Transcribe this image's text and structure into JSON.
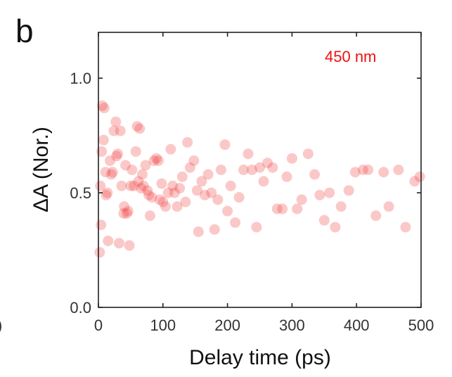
{
  "panel_label": "b",
  "stray_edge_label": ")",
  "colors": {
    "points": "#f03b3b",
    "annotation": "#ee1111",
    "axis": "#222222"
  },
  "chart_data": {
    "type": "scatter",
    "xlabel": "Delay time (ps)",
    "ylabel": "ΔA (Nor.)",
    "xlim": [
      0,
      500
    ],
    "ylim": [
      0,
      1.2
    ],
    "x_ticks": [
      0,
      100,
      200,
      300,
      400,
      500
    ],
    "x_tick_labels": [
      "0",
      "100",
      "200",
      "300",
      "400",
      "500"
    ],
    "y_ticks": [
      0.0,
      0.5,
      1.0
    ],
    "y_tick_labels": [
      "0.0",
      "0.5",
      "1.0"
    ],
    "grid": false,
    "annotation": "450 nm",
    "series": [
      {
        "points": [
          [
            2,
            0.24
          ],
          [
            3,
            0.53
          ],
          [
            4,
            0.36
          ],
          [
            5,
            0.68
          ],
          [
            6,
            0.88
          ],
          [
            8,
            0.73
          ],
          [
            9,
            0.87
          ],
          [
            11,
            0.59
          ],
          [
            12,
            0.49
          ],
          [
            14,
            0.5
          ],
          [
            15,
            0.29
          ],
          [
            18,
            0.64
          ],
          [
            20,
            0.58
          ],
          [
            22,
            0.59
          ],
          [
            24,
            0.77
          ],
          [
            27,
            0.81
          ],
          [
            28,
            0.66
          ],
          [
            30,
            0.67
          ],
          [
            32,
            0.28
          ],
          [
            34,
            0.77
          ],
          [
            36,
            0.53
          ],
          [
            39,
            0.41
          ],
          [
            40,
            0.44
          ],
          [
            42,
            0.62
          ],
          [
            44,
            0.41
          ],
          [
            46,
            0.42
          ],
          [
            48,
            0.27
          ],
          [
            50,
            0.53
          ],
          [
            52,
            0.6
          ],
          [
            55,
            0.53
          ],
          [
            58,
            0.68
          ],
          [
            60,
            0.79
          ],
          [
            62,
            0.55
          ],
          [
            64,
            0.78
          ],
          [
            66,
            0.52
          ],
          [
            68,
            0.58
          ],
          [
            70,
            0.53
          ],
          [
            73,
            0.62
          ],
          [
            76,
            0.51
          ],
          [
            78,
            0.49
          ],
          [
            80,
            0.4
          ],
          [
            83,
            0.48
          ],
          [
            86,
            0.64
          ],
          [
            90,
            0.65
          ],
          [
            93,
            0.64
          ],
          [
            95,
            0.47
          ],
          [
            98,
            0.54
          ],
          [
            100,
            0.46
          ],
          [
            104,
            0.44
          ],
          [
            108,
            0.5
          ],
          [
            112,
            0.69
          ],
          [
            115,
            0.53
          ],
          [
            118,
            0.5
          ],
          [
            122,
            0.44
          ],
          [
            126,
            0.52
          ],
          [
            130,
            0.57
          ],
          [
            135,
            0.46
          ],
          [
            138,
            0.72
          ],
          [
            142,
            0.61
          ],
          [
            148,
            0.64
          ],
          [
            153,
            0.51
          ],
          [
            155,
            0.33
          ],
          [
            160,
            0.55
          ],
          [
            165,
            0.49
          ],
          [
            170,
            0.58
          ],
          [
            175,
            0.5
          ],
          [
            180,
            0.34
          ],
          [
            185,
            0.47
          ],
          [
            190,
            0.6
          ],
          [
            196,
            0.71
          ],
          [
            200,
            0.42
          ],
          [
            205,
            0.53
          ],
          [
            212,
            0.37
          ],
          [
            218,
            0.48
          ],
          [
            225,
            0.6
          ],
          [
            232,
            0.67
          ],
          [
            238,
            0.6
          ],
          [
            245,
            0.35
          ],
          [
            250,
            0.61
          ],
          [
            256,
            0.55
          ],
          [
            262,
            0.63
          ],
          [
            270,
            0.61
          ],
          [
            277,
            0.43
          ],
          [
            285,
            0.43
          ],
          [
            292,
            0.57
          ],
          [
            300,
            0.65
          ],
          [
            308,
            0.43
          ],
          [
            315,
            0.47
          ],
          [
            325,
            0.67
          ],
          [
            335,
            0.58
          ],
          [
            343,
            0.49
          ],
          [
            350,
            0.38
          ],
          [
            358,
            0.5
          ],
          [
            367,
            0.35
          ],
          [
            376,
            0.44
          ],
          [
            388,
            0.51
          ],
          [
            398,
            0.59
          ],
          [
            410,
            0.6
          ],
          [
            418,
            0.6
          ],
          [
            430,
            0.4
          ],
          [
            442,
            0.59
          ],
          [
            450,
            0.44
          ],
          [
            465,
            0.6
          ],
          [
            476,
            0.35
          ],
          [
            490,
            0.55
          ],
          [
            498,
            0.57
          ]
        ]
      }
    ]
  }
}
